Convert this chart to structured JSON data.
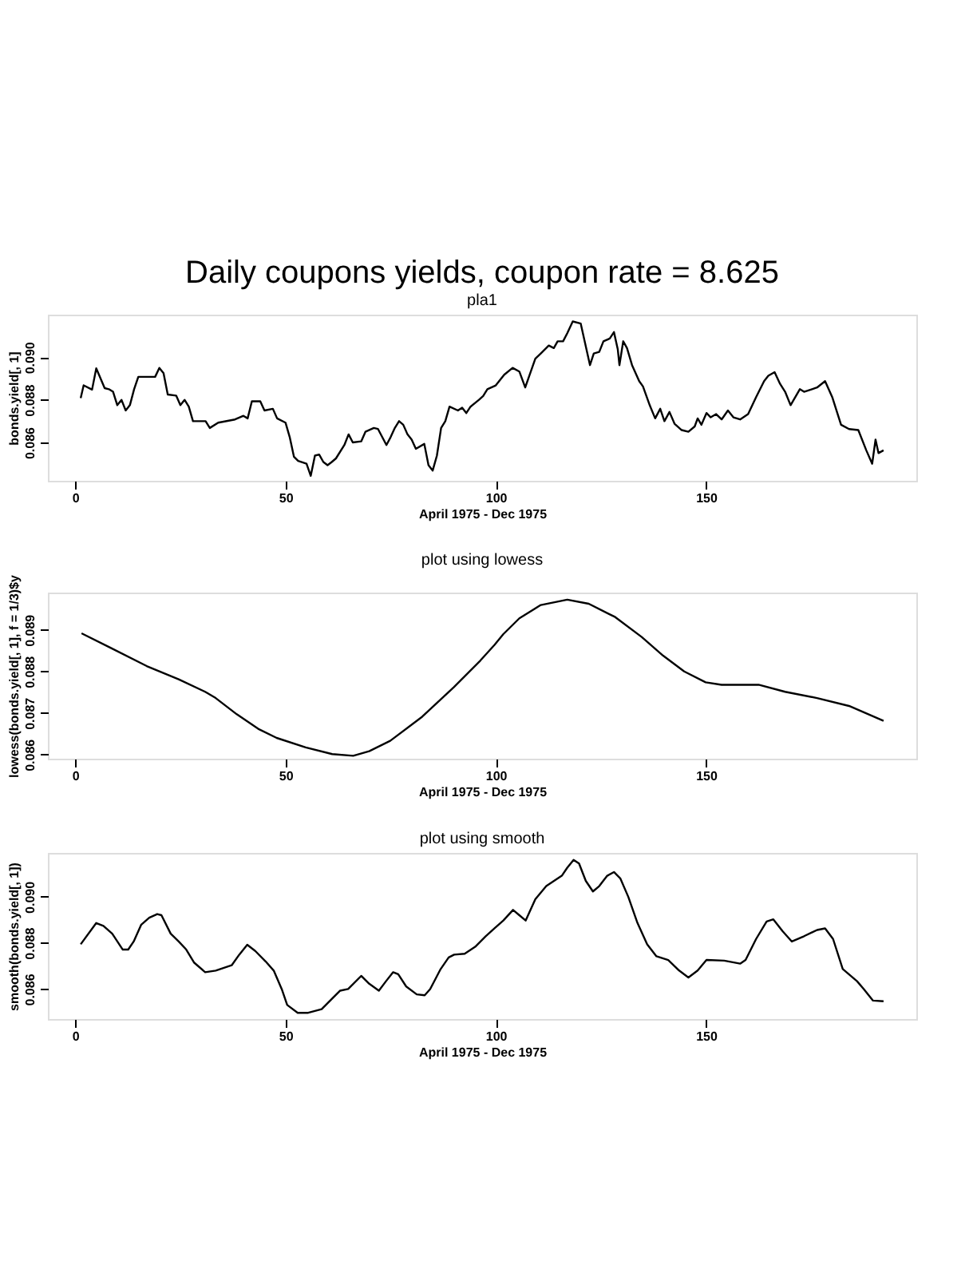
{
  "chart_data": [
    {
      "type": "line",
      "title": "Daily coupons yields, coupon rate = 8.625",
      "subtitle": "pla1",
      "xlabel": "April 1975 - Dec 1975",
      "ylabel": "bonds.yield[, 1]",
      "color": "#000000",
      "grid": false,
      "xlim": [
        -6.5,
        200
      ],
      "xticks": [
        0,
        50,
        100,
        150
      ],
      "ylim": [
        0.0842,
        0.092
      ],
      "yticks": [
        0.086,
        0.088,
        {
          "value": 0.09,
          "label": "0.090"
        }
      ],
      "x": [
        1.3,
        2,
        4,
        5,
        7,
        8,
        9,
        10,
        11,
        12,
        13,
        14,
        15,
        19,
        20,
        21,
        22,
        24,
        25,
        26,
        27,
        28,
        31,
        32,
        34,
        38,
        40,
        41,
        42,
        44,
        45,
        47,
        48,
        50,
        51,
        52,
        53,
        55,
        56,
        57,
        58,
        59,
        60,
        61,
        62,
        64,
        65,
        66,
        68,
        69,
        71,
        72,
        74,
        75,
        76,
        77,
        78,
        79,
        80,
        81,
        83,
        84,
        85,
        86,
        87,
        88,
        89,
        91,
        92,
        93,
        94,
        96,
        97,
        98,
        100,
        102,
        104,
        105.6,
        107,
        109.4,
        110.7,
        112.6,
        113.8,
        114.7,
        116,
        117,
        118.3,
        120.2,
        122.4,
        123.3,
        124.6,
        125.6,
        127.1,
        128.1,
        129,
        129.4,
        130.3,
        131.2,
        132.4,
        134.1,
        135,
        136.6,
        137.9,
        139.1,
        140.1,
        141.3,
        142.5,
        144.2,
        145.8,
        147.3,
        148,
        148.9,
        150.1,
        151.1,
        152.4,
        153.7,
        155.2,
        156.5,
        158.1,
        160,
        161.9,
        163.8,
        164.8,
        166.3,
        167.6,
        168.8,
        170.1,
        172.3,
        173.3,
        175.2,
        176.4,
        178.3,
        180,
        182.1,
        184,
        186.2,
        188.1,
        189.5,
        190.3,
        191,
        192.2
      ],
      "values": [
        0.08808,
        0.08868,
        0.08848,
        0.08948,
        0.08855,
        0.0885,
        0.08838,
        0.08775,
        0.088,
        0.0875,
        0.08775,
        0.0885,
        0.08908,
        0.08908,
        0.0895,
        0.08925,
        0.08825,
        0.0882,
        0.08775,
        0.088,
        0.08768,
        0.087,
        0.087,
        0.08668,
        0.08693,
        0.08708,
        0.08725,
        0.08713,
        0.08793,
        0.08793,
        0.0875,
        0.08758,
        0.08713,
        0.08693,
        0.08625,
        0.08533,
        0.08513,
        0.085,
        0.08443,
        0.08538,
        0.08543,
        0.08508,
        0.08493,
        0.08508,
        0.08525,
        0.08588,
        0.08638,
        0.086,
        0.08605,
        0.0865,
        0.08668,
        0.08663,
        0.08588,
        0.08625,
        0.08668,
        0.087,
        0.08683,
        0.08638,
        0.08613,
        0.0857,
        0.08593,
        0.08493,
        0.08468,
        0.08538,
        0.08668,
        0.087,
        0.08768,
        0.0875,
        0.08763,
        0.08738,
        0.08768,
        0.088,
        0.08818,
        0.0885,
        0.08868,
        0.08918,
        0.0895,
        0.08933,
        0.08858,
        0.08993,
        0.09018,
        0.09055,
        0.09043,
        0.09075,
        0.09075,
        0.09113,
        0.09168,
        0.09158,
        0.08963,
        0.09018,
        0.09025,
        0.09075,
        0.09088,
        0.09118,
        0.09038,
        0.08963,
        0.09075,
        0.09043,
        0.08963,
        0.08888,
        0.08863,
        0.08775,
        0.08713,
        0.08758,
        0.087,
        0.08743,
        0.08688,
        0.08658,
        0.0865,
        0.08675,
        0.08713,
        0.08683,
        0.08738,
        0.08718,
        0.08733,
        0.08708,
        0.0875,
        0.08718,
        0.08708,
        0.08733,
        0.08813,
        0.08888,
        0.08913,
        0.0893,
        0.08875,
        0.08838,
        0.08775,
        0.0885,
        0.08838,
        0.0885,
        0.08858,
        0.08888,
        0.08813,
        0.08683,
        0.08663,
        0.08658,
        0.08563,
        0.085,
        0.08613,
        0.0855,
        0.08563
      ]
    },
    {
      "type": "line",
      "title": "plot using lowess",
      "xlabel": "April 1975 - Dec 1975",
      "ylabel": "lowess(bonds.yield[, 1], f = 1/3)$y",
      "color": "#000000",
      "grid": false,
      "xlim": [
        -6.5,
        200
      ],
      "xticks": [
        0,
        50,
        100,
        150
      ],
      "ylim": [
        0.0859,
        0.0899
      ],
      "yticks": [
        0.086,
        0.087,
        0.088,
        0.089
      ],
      "x": [
        1.5,
        8.2,
        17,
        24.6,
        30.9,
        33.4,
        38.4,
        43.5,
        47.9,
        54.8,
        61.1,
        66.1,
        69.9,
        74.9,
        82.5,
        90,
        96.3,
        99.7,
        101.8,
        105.6,
        110.7,
        117,
        122.1,
        128.4,
        134.7,
        139.8,
        144.8,
        149.9,
        153.7,
        162.5,
        168.8,
        176.4,
        184,
        192.2
      ],
      "values": [
        0.08892,
        0.08858,
        0.08813,
        0.08781,
        0.08751,
        0.08736,
        0.08697,
        0.08662,
        0.0864,
        0.08617,
        0.08601,
        0.08597,
        0.08608,
        0.08633,
        0.08691,
        0.08762,
        0.08826,
        0.08864,
        0.0889,
        0.08928,
        0.0896,
        0.08973,
        0.08963,
        0.08931,
        0.08883,
        0.08838,
        0.088,
        0.08774,
        0.08768,
        0.08768,
        0.08751,
        0.08736,
        0.08717,
        0.08681
      ]
    },
    {
      "type": "line",
      "title": "plot using smooth",
      "xlabel": "April 1975 - Dec 1975",
      "ylabel": "smooth(bonds.yield[, 1])",
      "color": "#000000",
      "grid": false,
      "xlim": [
        -6.5,
        200
      ],
      "xticks": [
        0,
        50,
        100,
        150
      ],
      "ylim": [
        0.0847,
        0.0919
      ],
      "yticks": [
        0.086,
        0.088,
        {
          "value": 0.09,
          "label": "0.090"
        }
      ],
      "x": [
        1.3,
        5,
        6.7,
        8.8,
        11.3,
        12.6,
        13.9,
        15.7,
        17.6,
        19.5,
        20.5,
        22.7,
        24.6,
        26.4,
        28.3,
        30.9,
        33.4,
        37.2,
        39,
        40.9,
        42.8,
        45.3,
        47.2,
        49.1,
        50.4,
        52.9,
        55.4,
        58.6,
        61.1,
        63,
        64.9,
        68,
        69.9,
        72.2,
        73.9,
        75.6,
        76.8,
        78.7,
        81.2,
        83.1,
        84.4,
        86.9,
        88.8,
        90.1,
        92.6,
        95.1,
        97.6,
        99.7,
        101.8,
        104.1,
        105.6,
        107.1,
        109.4,
        112,
        115.7,
        117,
        118.5,
        119.8,
        121.4,
        123.1,
        124.6,
        126.5,
        128.1,
        129.6,
        131.5,
        133.7,
        136,
        138.2,
        141,
        143.6,
        145.8,
        148,
        150.1,
        154.3,
        158.1,
        159.4,
        161.9,
        164.4,
        166,
        168.2,
        170.4,
        173.3,
        176.4,
        178.3,
        180.2,
        182.5,
        185.9,
        187.5,
        189.7,
        192.2
      ],
      "values": [
        0.08794,
        0.08886,
        0.08874,
        0.0884,
        0.08771,
        0.08771,
        0.08806,
        0.08879,
        0.08909,
        0.08925,
        0.0892,
        0.0884,
        0.08806,
        0.08771,
        0.08714,
        0.08673,
        0.0868,
        0.08703,
        0.08749,
        0.08792,
        0.08765,
        0.08719,
        0.0868,
        0.086,
        0.08531,
        0.08497,
        0.08497,
        0.08513,
        0.08559,
        0.08593,
        0.086,
        0.08657,
        0.08623,
        0.08593,
        0.08634,
        0.08673,
        0.08664,
        0.08611,
        0.08577,
        0.08573,
        0.086,
        0.08687,
        0.08737,
        0.08749,
        0.08753,
        0.08783,
        0.08829,
        0.08863,
        0.08897,
        0.08943,
        0.0892,
        0.08897,
        0.08989,
        0.09046,
        0.09091,
        0.09126,
        0.0916,
        0.09144,
        0.09069,
        0.09023,
        0.09046,
        0.09091,
        0.09107,
        0.0908,
        0.09,
        0.08886,
        0.08794,
        0.08742,
        0.08726,
        0.0868,
        0.0865,
        0.0868,
        0.08726,
        0.08723,
        0.0871,
        0.08726,
        0.08817,
        0.08893,
        0.08902,
        0.08851,
        0.08806,
        0.08829,
        0.08856,
        0.08863,
        0.08817,
        0.08687,
        0.08634,
        0.086,
        0.0855,
        0.08547
      ]
    }
  ]
}
